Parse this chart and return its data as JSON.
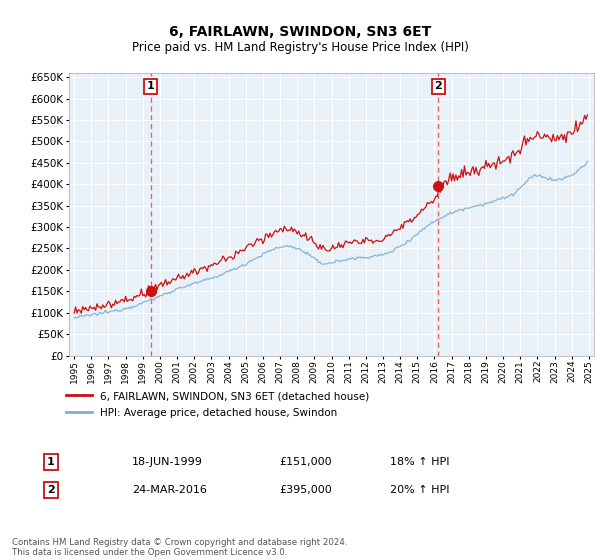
{
  "title": "6, FAIRLAWN, SWINDON, SN3 6ET",
  "subtitle": "Price paid vs. HM Land Registry's House Price Index (HPI)",
  "ylim": [
    0,
    660000
  ],
  "yticks": [
    0,
    50000,
    100000,
    150000,
    200000,
    250000,
    300000,
    350000,
    400000,
    450000,
    500000,
    550000,
    600000,
    650000
  ],
  "xlim_start": 1994.7,
  "xlim_end": 2025.3,
  "background_color": "#ffffff",
  "plot_bg_color": "#e8f0f8",
  "grid_color": "#ffffff",
  "sale1_date": 1999.46,
  "sale1_price": 151000,
  "sale2_date": 2016.23,
  "sale2_price": 395000,
  "vline_color": "#e06060",
  "hpi_line_color": "#7bafd4",
  "price_line_color": "#cc1111",
  "marker_color": "#cc1111",
  "legend1_label": "6, FAIRLAWN, SWINDON, SN3 6ET (detached house)",
  "legend2_label": "HPI: Average price, detached house, Swindon",
  "ann1_box": "1",
  "ann1_date": "18-JUN-1999",
  "ann1_price": "£151,000",
  "ann1_hpi": "18% ↑ HPI",
  "ann2_box": "2",
  "ann2_date": "24-MAR-2016",
  "ann2_price": "£395,000",
  "ann2_hpi": "20% ↑ HPI",
  "footer": "Contains HM Land Registry data © Crown copyright and database right 2024.\nThis data is licensed under the Open Government Licence v3.0."
}
